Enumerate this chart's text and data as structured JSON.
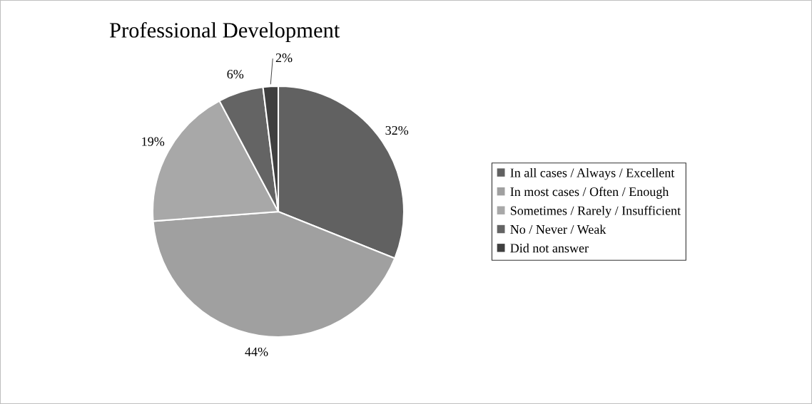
{
  "chart_data": {
    "type": "pie",
    "title": "Professional Development",
    "categories": [
      "In all cases / Always / Excellent",
      "In most cases / Often / Enough",
      "Sometimes / Rarely / Insufficient",
      "No / Never / Weak",
      "Did not answer"
    ],
    "values": [
      32,
      44,
      19,
      6,
      2
    ],
    "colors": [
      "#616161",
      "#a0a0a0",
      "#a8a8a8",
      "#646464",
      "#3f3f3f"
    ],
    "value_labels": [
      "32%",
      "44%",
      "19%",
      "6%",
      "2%"
    ],
    "legend": "right"
  }
}
